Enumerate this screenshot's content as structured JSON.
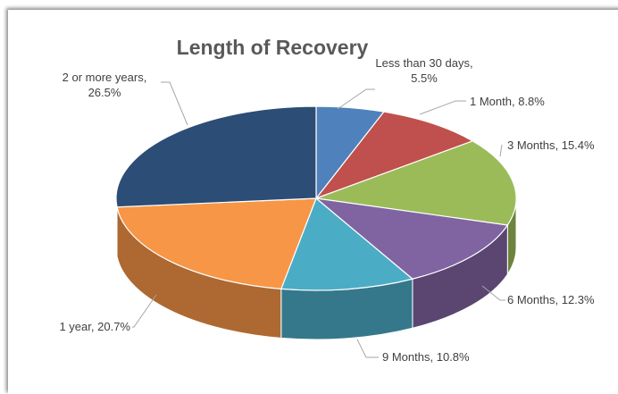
{
  "chart_data": {
    "type": "pie3d",
    "title": "Length of Recovery",
    "categories": [
      "Less than 30 days",
      "1 Month",
      "3 Months",
      "6 Months",
      "9 Months",
      "1 year",
      "2 or more years"
    ],
    "values": [
      5.5,
      8.8,
      15.4,
      12.3,
      10.8,
      20.7,
      26.5
    ],
    "value_labels": [
      "5.5%",
      "8.8%",
      "15.4%",
      "12.3%",
      "10.8%",
      "20.7%",
      "26.5%"
    ],
    "colors": [
      "#4f81bd",
      "#c0504d",
      "#9bbb59",
      "#8064a2",
      "#4bacc6",
      "#f79646",
      "#2c4d75"
    ]
  }
}
